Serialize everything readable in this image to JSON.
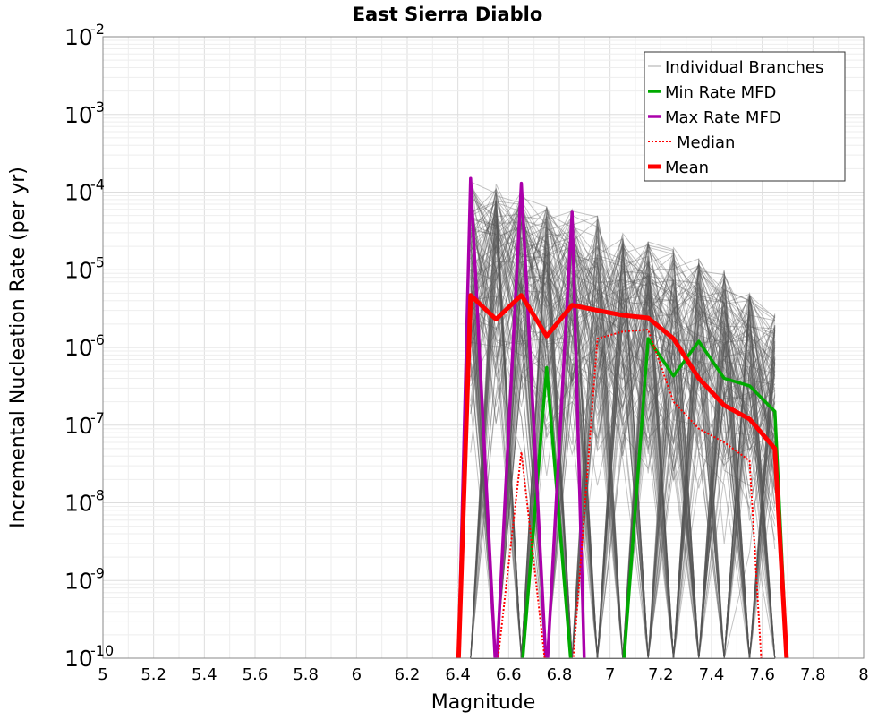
{
  "chart_data": {
    "type": "line",
    "title": "East Sierra Diablo",
    "xlabel": "Magnitude",
    "ylabel": "Incremental Nucleation Rate (per yr)",
    "xlim": [
      5,
      8
    ],
    "ylim": [
      1e-10,
      0.01
    ],
    "y_scale": "log",
    "grid": true,
    "legend_position": "top-right",
    "x_ticks": [
      "5",
      "5.2",
      "5.4",
      "5.6",
      "5.8",
      "6",
      "6.2",
      "6.4",
      "6.6",
      "6.8",
      "7",
      "7.2",
      "7.4",
      "7.6",
      "7.8",
      "8"
    ],
    "y_ticks": [
      {
        "base": "10",
        "exp": "-10"
      },
      {
        "base": "10",
        "exp": "-9"
      },
      {
        "base": "10",
        "exp": "-8"
      },
      {
        "base": "10",
        "exp": "-7"
      },
      {
        "base": "10",
        "exp": "-6"
      },
      {
        "base": "10",
        "exp": "-5"
      },
      {
        "base": "10",
        "exp": "-4"
      },
      {
        "base": "10",
        "exp": "-3"
      },
      {
        "base": "10",
        "exp": "-2"
      }
    ],
    "series": [
      {
        "name": "Individual Branches",
        "color": "#555555",
        "style": "thin",
        "x": [
          6.45,
          6.55,
          6.65,
          6.75,
          6.85,
          6.95,
          7.05,
          7.15,
          7.25,
          7.35,
          7.45,
          7.55,
          7.65
        ],
        "values": [
          null,
          0.00013,
          null,
          6.5e-05,
          6e-05,
          5e-05,
          3e-05,
          2.5e-05,
          2e-05,
          1.5e-05,
          1e-05,
          5e-06,
          3e-06
        ]
      },
      {
        "name": "Min Rate MFD",
        "color": "#00aa00",
        "style": "solid",
        "x": [
          6.45,
          6.55,
          6.65,
          6.75,
          6.85,
          6.95,
          7.05,
          7.15,
          7.25,
          7.35,
          7.45,
          7.55,
          7.65
        ],
        "values": [
          null,
          null,
          null,
          5.5e-07,
          null,
          null,
          null,
          1.3e-06,
          4.3e-07,
          1.2e-06,
          4e-07,
          3.2e-07,
          1.5e-07
        ]
      },
      {
        "name": "Max Rate MFD",
        "color": "#aa00aa",
        "style": "solid",
        "x": [
          6.45,
          6.55,
          6.65,
          6.75,
          6.85
        ],
        "values": [
          0.00015,
          null,
          0.00013,
          null,
          5.5e-05
        ]
      },
      {
        "name": "Median",
        "color": "#ff0000",
        "style": "dotted",
        "x": [
          6.45,
          6.55,
          6.65,
          6.75,
          6.85,
          6.95,
          7.05,
          7.15,
          7.25,
          7.35,
          7.45,
          7.55
        ],
        "values": [
          null,
          null,
          4.5e-08,
          null,
          null,
          1.3e-06,
          1.6e-06,
          1.7e-06,
          2e-07,
          9e-08,
          6e-08,
          3.5e-08
        ]
      },
      {
        "name": "Mean",
        "color": "#ff0000",
        "style": "thick",
        "x": [
          6.45,
          6.55,
          6.65,
          6.75,
          6.85,
          6.95,
          7.05,
          7.15,
          7.25,
          7.35,
          7.45,
          7.55,
          7.65
        ],
        "values": [
          4.7e-06,
          2.3e-06,
          4.7e-06,
          1.4e-06,
          3.5e-06,
          3e-06,
          2.6e-06,
          2.4e-06,
          1.3e-06,
          4e-07,
          1.8e-07,
          1.2e-07,
          5e-08
        ]
      }
    ]
  }
}
